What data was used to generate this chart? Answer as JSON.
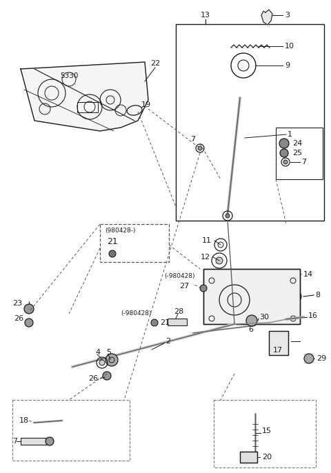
{
  "bg_color": "#ffffff",
  "line_color": "#1a1a1a",
  "fig_width": 4.8,
  "fig_height": 6.86,
  "dpi": 100,
  "xlim": [
    0,
    480
  ],
  "ylim": [
    0,
    686
  ]
}
